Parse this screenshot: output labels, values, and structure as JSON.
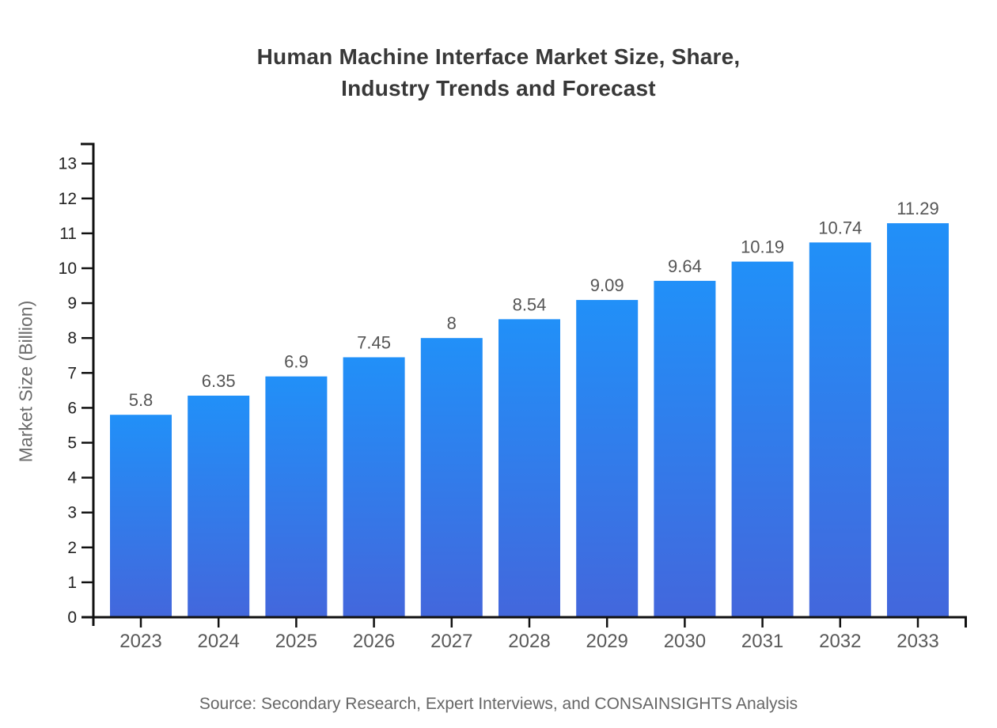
{
  "chart_data": {
    "type": "bar",
    "title": "Human Machine Interface Market Size, Share, Industry Trends and Forecast",
    "title_lines": [
      "Human Machine Interface Market Size, Share,",
      "Industry Trends and Forecast"
    ],
    "categories": [
      "2023",
      "2024",
      "2025",
      "2026",
      "2027",
      "2028",
      "2029",
      "2030",
      "2031",
      "2032",
      "2033"
    ],
    "values": [
      5.8,
      6.35,
      6.9,
      7.45,
      8,
      8.54,
      9.09,
      9.64,
      10.19,
      10.74,
      11.29
    ],
    "value_labels": [
      "5.8",
      "6.35",
      "6.9",
      "7.45",
      "8",
      "8.54",
      "9.09",
      "9.64",
      "10.19",
      "10.74",
      "11.29"
    ],
    "xlabel": "",
    "ylabel": "Market Size (Billion)",
    "ylim": [
      0,
      13
    ],
    "ytick_step": 1,
    "yticks": [
      "0",
      "1",
      "2",
      "3",
      "4",
      "5",
      "6",
      "7",
      "8",
      "9",
      "10",
      "11",
      "12",
      "13"
    ],
    "grid": false,
    "legend": "none"
  },
  "source_note": "Source: Secondary Research, Expert Interviews, and CONSAINSIGHTS Analysis",
  "colors": {
    "background": "#ffffff",
    "title": "#383838",
    "axis": "#111111",
    "bar_gradient_top": "#2190f8",
    "bar_gradient_bottom": "#4367dc",
    "ytick_label": "#222222",
    "xtick_label": "#595959",
    "value_label": "#555555",
    "ylabel": "#6b6b6b",
    "source": "#666666"
  }
}
